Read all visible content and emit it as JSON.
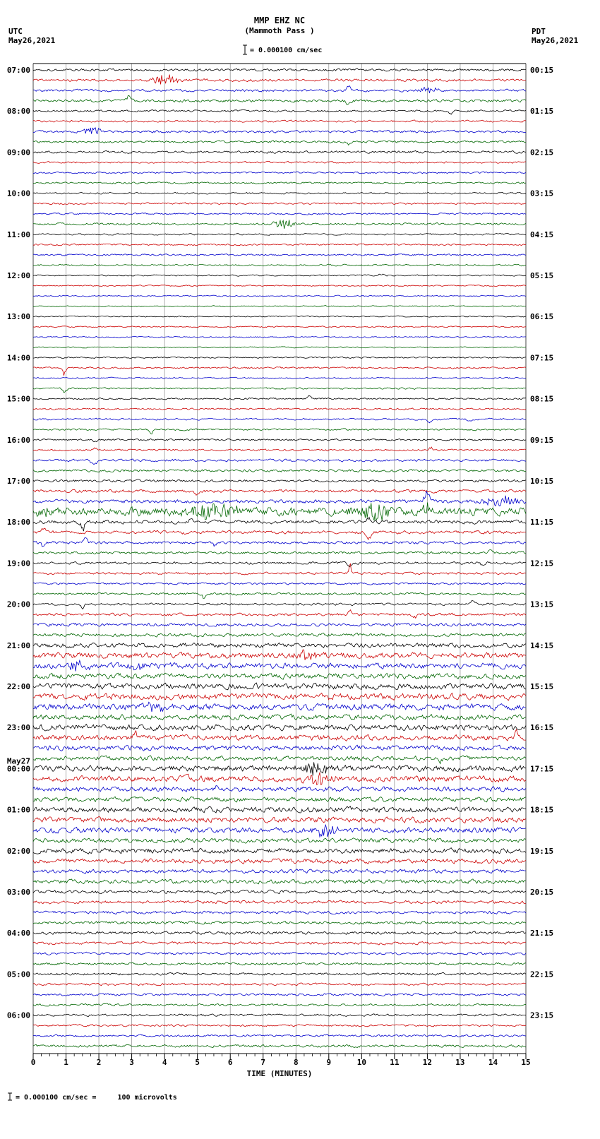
{
  "header": {
    "title_line1": "MMP EHZ NC",
    "title_line2": "(Mammoth Pass )",
    "scale_text": "= 0.000100 cm/sec",
    "left_tz": "UTC",
    "left_date": "May26,2021",
    "right_tz": "PDT",
    "right_date": "May26,2021"
  },
  "footer": {
    "note": "= 0.000100 cm/sec =     100 microvolts"
  },
  "chart_data": {
    "type": "line",
    "station_line": "MMP EHZ NC",
    "station_name": "Mammoth Pass",
    "left_timezone": "UTC",
    "right_timezone": "PDT",
    "start_date": "May26,2021",
    "next_date_marker": "May27",
    "scale": "0.000100 cm/sec",
    "scale_equivalent": "100 microvolts",
    "minutes_per_line": 15,
    "xlabel": "TIME (MINUTES)",
    "x_ticks": [
      0,
      1,
      2,
      3,
      4,
      5,
      6,
      7,
      8,
      9,
      10,
      11,
      12,
      13,
      14,
      15
    ],
    "trace_colors": [
      "#000000",
      "#cc0000",
      "#0000cc",
      "#006600"
    ],
    "rows": [
      {
        "c": 0,
        "a": 1.2,
        "utc": "07:00",
        "pdt": "00:15"
      },
      {
        "c": 1,
        "a": 1.3,
        "ev": [
          [
            4.0,
            9,
            0.25
          ]
        ]
      },
      {
        "c": 2,
        "a": 1.2,
        "ev": [
          [
            9.6,
            6,
            0.06
          ],
          [
            12.0,
            6,
            0.2
          ]
        ]
      },
      {
        "c": 3,
        "a": 1.3,
        "ev": [
          [
            2.9,
            8,
            0.06
          ],
          [
            9.6,
            7,
            0.06
          ]
        ]
      },
      {
        "c": 0,
        "a": 1.0,
        "utc": "08:00",
        "pdt": "01:15",
        "ev": [
          [
            12.7,
            4,
            0.05
          ]
        ]
      },
      {
        "c": 1,
        "a": 1.0
      },
      {
        "c": 2,
        "a": 1.2,
        "ev": [
          [
            1.8,
            7,
            0.2
          ]
        ]
      },
      {
        "c": 3,
        "a": 1.0,
        "ev": [
          [
            9.6,
            4,
            0.05
          ]
        ]
      },
      {
        "c": 0,
        "a": 1.2,
        "utc": "09:00",
        "pdt": "02:15"
      },
      {
        "c": 1,
        "a": 0.9
      },
      {
        "c": 2,
        "a": 0.8
      },
      {
        "c": 3,
        "a": 0.8
      },
      {
        "c": 0,
        "a": 0.8,
        "utc": "10:00",
        "pdt": "03:15"
      },
      {
        "c": 1,
        "a": 0.9
      },
      {
        "c": 2,
        "a": 0.8
      },
      {
        "c": 3,
        "a": 1.0,
        "ev": [
          [
            7.6,
            7,
            0.2
          ]
        ]
      },
      {
        "c": 0,
        "a": 0.8,
        "utc": "11:00",
        "pdt": "04:15"
      },
      {
        "c": 1,
        "a": 0.8
      },
      {
        "c": 2,
        "a": 0.8
      },
      {
        "c": 3,
        "a": 0.8
      },
      {
        "c": 0,
        "a": 0.7,
        "utc": "12:00",
        "pdt": "05:15",
        "ev": [
          [
            10.6,
            3,
            0.08
          ]
        ]
      },
      {
        "c": 1,
        "a": 0.6
      },
      {
        "c": 2,
        "a": 0.6
      },
      {
        "c": 3,
        "a": 0.6
      },
      {
        "c": 0,
        "a": 0.6,
        "utc": "13:00",
        "pdt": "06:15"
      },
      {
        "c": 1,
        "a": 0.6
      },
      {
        "c": 2,
        "a": 0.6
      },
      {
        "c": 3,
        "a": 0.6
      },
      {
        "c": 0,
        "a": 0.7,
        "utc": "14:00",
        "pdt": "07:15"
      },
      {
        "c": 1,
        "a": 0.8,
        "ev": [
          [
            0.95,
            12,
            0.04
          ]
        ]
      },
      {
        "c": 2,
        "a": 0.7
      },
      {
        "c": 3,
        "a": 0.8,
        "ev": [
          [
            0.95,
            7,
            0.05
          ]
        ]
      },
      {
        "c": 0,
        "a": 0.8,
        "utc": "15:00",
        "pdt": "08:15",
        "ev": [
          [
            8.4,
            6,
            0.05
          ]
        ]
      },
      {
        "c": 1,
        "a": 0.8
      },
      {
        "c": 2,
        "a": 0.9,
        "ev": [
          [
            12.05,
            9,
            0.05
          ],
          [
            13.3,
            5,
            0.05
          ]
        ]
      },
      {
        "c": 3,
        "a": 0.9,
        "ev": [
          [
            3.6,
            8,
            0.05
          ]
        ]
      },
      {
        "c": 0,
        "a": 0.9,
        "utc": "16:00",
        "pdt": "09:15",
        "ev": [
          [
            1.9,
            5,
            0.05
          ]
        ]
      },
      {
        "c": 1,
        "a": 0.9,
        "ev": [
          [
            1.9,
            4,
            0.05
          ],
          [
            12.1,
            5,
            0.05
          ]
        ]
      },
      {
        "c": 2,
        "a": 1.2,
        "ev": [
          [
            1.85,
            5,
            0.08
          ]
        ]
      },
      {
        "c": 3,
        "a": 1.2
      },
      {
        "c": 0,
        "a": 1.2,
        "utc": "17:00",
        "pdt": "10:15"
      },
      {
        "c": 1,
        "a": 1.5,
        "ev": [
          [
            5.0,
            4,
            0.1
          ]
        ]
      },
      {
        "c": 2,
        "a": 1.8,
        "ev": [
          [
            12.0,
            14,
            0.08
          ],
          [
            14.3,
            7,
            0.5
          ]
        ]
      },
      {
        "c": 3,
        "a": 4.0,
        "ev": [
          [
            0.3,
            10,
            0.15
          ],
          [
            5.6,
            12,
            0.5
          ],
          [
            10.3,
            12,
            0.35
          ],
          [
            12.0,
            9,
            0.15
          ]
        ]
      },
      {
        "c": 0,
        "a": 1.8,
        "utc": "18:00",
        "pdt": "11:15",
        "ev": [
          [
            1.5,
            15,
            0.04
          ],
          [
            4.8,
            8,
            0.05
          ],
          [
            10.2,
            6,
            0.05
          ]
        ]
      },
      {
        "c": 1,
        "a": 1.5,
        "ev": [
          [
            0.3,
            10,
            0.05
          ],
          [
            4.6,
            7,
            0.05
          ],
          [
            10.2,
            9,
            0.08
          ]
        ]
      },
      {
        "c": 2,
        "a": 1.3,
        "ev": [
          [
            0.3,
            8,
            0.05
          ],
          [
            1.6,
            7,
            0.05
          ],
          [
            5.5,
            5,
            0.05
          ]
        ]
      },
      {
        "c": 3,
        "a": 1.2,
        "ev": [
          [
            13.9,
            5,
            0.05
          ]
        ]
      },
      {
        "c": 0,
        "a": 1.2,
        "utc": "19:00",
        "pdt": "12:15",
        "ev": [
          [
            9.65,
            7,
            0.05
          ],
          [
            13.7,
            5,
            0.05
          ]
        ]
      },
      {
        "c": 1,
        "a": 1.1,
        "ev": [
          [
            9.65,
            14,
            0.04
          ]
        ]
      },
      {
        "c": 2,
        "a": 1.0
      },
      {
        "c": 3,
        "a": 1.1,
        "ev": [
          [
            5.2,
            6,
            0.05
          ]
        ]
      },
      {
        "c": 0,
        "a": 1.1,
        "utc": "20:00",
        "pdt": "13:15",
        "ev": [
          [
            1.5,
            7,
            0.04
          ],
          [
            9.7,
            5,
            0.04
          ],
          [
            13.4,
            9,
            0.05
          ]
        ]
      },
      {
        "c": 1,
        "a": 1.3,
        "ev": [
          [
            9.65,
            12,
            0.04
          ],
          [
            11.6,
            7,
            0.05
          ]
        ]
      },
      {
        "c": 2,
        "a": 1.5
      },
      {
        "c": 3,
        "a": 1.6
      },
      {
        "c": 0,
        "a": 2.2,
        "utc": "21:00",
        "pdt": "14:15"
      },
      {
        "c": 1,
        "a": 2.8,
        "ev": [
          [
            8.3,
            7,
            0.3
          ]
        ]
      },
      {
        "c": 2,
        "a": 2.8,
        "ev": [
          [
            1.3,
            7,
            0.25
          ],
          [
            3.2,
            6,
            0.2
          ]
        ]
      },
      {
        "c": 3,
        "a": 2.6
      },
      {
        "c": 0,
        "a": 2.8,
        "utc": "22:00",
        "pdt": "15:15"
      },
      {
        "c": 1,
        "a": 3.0,
        "ev": [
          [
            9.0,
            9,
            0.05
          ]
        ]
      },
      {
        "c": 2,
        "a": 3.0,
        "ev": [
          [
            3.7,
            7,
            0.2
          ]
        ]
      },
      {
        "c": 3,
        "a": 2.6
      },
      {
        "c": 0,
        "a": 2.8,
        "utc": "23:00",
        "pdt": "16:15"
      },
      {
        "c": 1,
        "a": 2.6,
        "ev": [
          [
            3.1,
            13,
            0.04
          ],
          [
            14.7,
            11,
            0.05
          ]
        ]
      },
      {
        "c": 2,
        "a": 2.4
      },
      {
        "c": 3,
        "a": 2.2,
        "ev": [
          [
            12.4,
            8,
            0.05
          ]
        ]
      },
      {
        "c": 0,
        "a": 2.8,
        "utc": "00:00",
        "extra": "May27",
        "pdt": "17:15",
        "ev": [
          [
            8.6,
            11,
            0.35
          ]
        ]
      },
      {
        "c": 1,
        "a": 2.8,
        "ev": [
          [
            4.7,
            11,
            0.04
          ],
          [
            8.6,
            9,
            0.3
          ]
        ]
      },
      {
        "c": 2,
        "a": 2.4,
        "ev": [
          [
            5.6,
            6,
            0.05
          ]
        ]
      },
      {
        "c": 3,
        "a": 2.2
      },
      {
        "c": 0,
        "a": 2.6,
        "utc": "01:00",
        "pdt": "18:15"
      },
      {
        "c": 1,
        "a": 2.6
      },
      {
        "c": 2,
        "a": 2.6,
        "ev": [
          [
            8.9,
            9,
            0.25
          ]
        ]
      },
      {
        "c": 3,
        "a": 2.2
      },
      {
        "c": 0,
        "a": 2.4,
        "utc": "02:00",
        "pdt": "19:15"
      },
      {
        "c": 1,
        "a": 2.2
      },
      {
        "c": 2,
        "a": 1.8
      },
      {
        "c": 3,
        "a": 2.0
      },
      {
        "c": 0,
        "a": 1.6,
        "utc": "03:00",
        "pdt": "20:15"
      },
      {
        "c": 1,
        "a": 1.5
      },
      {
        "c": 2,
        "a": 1.4
      },
      {
        "c": 3,
        "a": 1.4
      },
      {
        "c": 0,
        "a": 1.4,
        "utc": "04:00",
        "pdt": "21:15"
      },
      {
        "c": 1,
        "a": 1.3
      },
      {
        "c": 2,
        "a": 1.2
      },
      {
        "c": 3,
        "a": 1.2
      },
      {
        "c": 0,
        "a": 1.2,
        "utc": "05:00",
        "pdt": "22:15"
      },
      {
        "c": 1,
        "a": 1.1
      },
      {
        "c": 2,
        "a": 1.1
      },
      {
        "c": 3,
        "a": 1.1
      },
      {
        "c": 0,
        "a": 1.1,
        "utc": "06:00",
        "pdt": "23:15"
      },
      {
        "c": 1,
        "a": 1.0
      },
      {
        "c": 2,
        "a": 1.0
      },
      {
        "c": 3,
        "a": 1.3
      }
    ]
  }
}
